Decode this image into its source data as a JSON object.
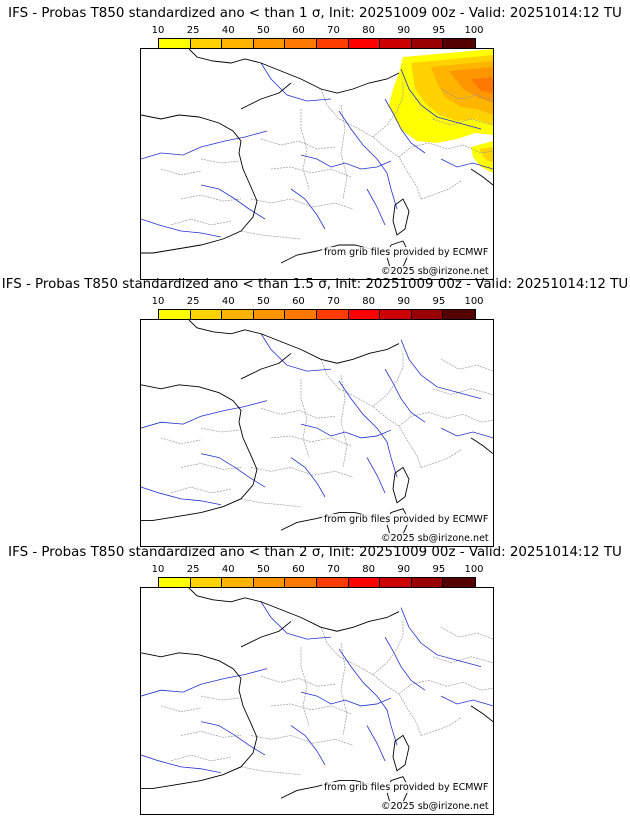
{
  "legend": {
    "ticks": [
      "10",
      "25",
      "40",
      "50",
      "60",
      "70",
      "80",
      "90",
      "95",
      "100"
    ],
    "colors": [
      "#ffff00",
      "#ffd200",
      "#ffb400",
      "#ff9600",
      "#ff7800",
      "#ff3c00",
      "#ff0000",
      "#cc0000",
      "#990000",
      "#550000"
    ]
  },
  "panels": [
    {
      "title": "IFS - Probas T850  standardized ano < than 1 σ, Init: 20251009 00z - Valid: 20251014:12 TU",
      "credit": "from grib files provided by ECMWF",
      "copyright": "©2025 sb@irizone.net",
      "probability_shading": "present over north-east (Germany, Belgium, Switzerland, N. Italy)"
    },
    {
      "title": "IFS - Probas T850  standardized ano < than 1.5 σ, Init: 20251009 00z - Valid: 20251014:12 TU",
      "credit": "from grib files provided by ECMWF",
      "copyright": "©2025 sb@irizone.net",
      "probability_shading": "none"
    },
    {
      "title": "IFS - Probas T850  standardized ano < than 2 σ, Init: 20251009 00z - Valid: 20251014:12 TU",
      "credit": "from grib files provided by ECMWF",
      "copyright": "©2025 sb@irizone.net",
      "probability_shading": "none"
    }
  ]
}
